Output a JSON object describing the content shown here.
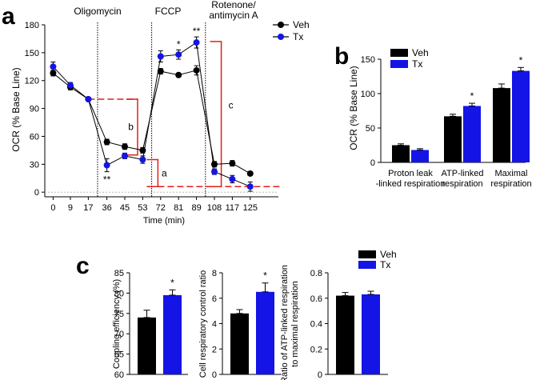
{
  "colors": {
    "veh": "#000000",
    "tx": "#1414e6",
    "bracket": "#e0201b",
    "dash": "#e0201b"
  },
  "panel_labels": {
    "a": "a",
    "b": "b",
    "c": "c"
  },
  "chart_data": [
    {
      "id": "a",
      "type": "line",
      "ylabel": "OCR (% Base Line)",
      "xlabel": "Time (min)",
      "x": [
        "0",
        "9",
        "17",
        "36",
        "45",
        "53",
        "72",
        "81",
        "89",
        "108",
        "117",
        "125"
      ],
      "ylim": [
        -5,
        180
      ],
      "yticks": [
        0,
        30,
        60,
        90,
        120,
        150,
        180
      ],
      "legend": [
        "Veh",
        "Tx"
      ],
      "phases": [
        "Oligomycin",
        "FCCP",
        "Rotenone/",
        "antimycin A"
      ],
      "series": [
        {
          "name": "Veh",
          "values": [
            128,
            113,
            100,
            54,
            49,
            45,
            130,
            126,
            131,
            30,
            31,
            20
          ],
          "err": [
            3,
            3,
            1,
            3,
            3,
            3,
            3,
            2,
            5,
            3,
            3,
            2
          ]
        },
        {
          "name": "Tx",
          "values": [
            135,
            115,
            100,
            29,
            39,
            35,
            146,
            148,
            161,
            22,
            14,
            6
          ],
          "err": [
            5,
            3,
            1,
            7,
            3,
            4,
            6,
            5,
            6,
            3,
            4,
            5
          ]
        }
      ],
      "significance": [
        {
          "x": "36",
          "label": "**"
        },
        {
          "x": "81",
          "label": "*"
        },
        {
          "x": "89",
          "label": "**"
        }
      ],
      "brackets": {
        "a": "a",
        "b": "b",
        "c": "c"
      }
    },
    {
      "id": "b",
      "type": "bar",
      "ylabel": "OCR (% Base Line)",
      "categories": [
        "Proton leak",
        "ATP-linked",
        "Maximal"
      ],
      "categories_line2": [
        "-linked respiration",
        "respiration",
        "respiration"
      ],
      "ylim": [
        0,
        150
      ],
      "yticks": [
        0,
        50,
        100,
        150
      ],
      "legend": [
        "Veh",
        "Tx"
      ],
      "series": [
        {
          "name": "Veh",
          "values": [
            25,
            67,
            108
          ],
          "err": [
            2,
            3,
            6
          ]
        },
        {
          "name": "Tx",
          "values": [
            18,
            82,
            133
          ],
          "err": [
            2,
            4,
            5
          ]
        }
      ],
      "significance": [
        "",
        "*",
        "*"
      ]
    },
    {
      "id": "c1",
      "type": "bar",
      "ylabel": "Coupling efficiency (%)",
      "ylim": [
        60,
        85
      ],
      "yticks": [
        60,
        65,
        70,
        75,
        80,
        85
      ],
      "series": [
        {
          "name": "Veh",
          "values": [
            74
          ],
          "err": [
            1.8
          ]
        },
        {
          "name": "Tx",
          "values": [
            79.5
          ],
          "err": [
            1.3
          ]
        }
      ],
      "significance": "*"
    },
    {
      "id": "c2",
      "type": "bar",
      "ylabel": "Cell respiratory control ratio",
      "ylim": [
        0,
        8
      ],
      "yticks": [
        0,
        2,
        4,
        6,
        8
      ],
      "series": [
        {
          "name": "Veh",
          "values": [
            4.8
          ],
          "err": [
            0.3
          ]
        },
        {
          "name": "Tx",
          "values": [
            6.5
          ],
          "err": [
            0.7
          ]
        }
      ],
      "significance": "*"
    },
    {
      "id": "c3",
      "type": "bar",
      "ylabel": "Ratio of ATP-linked respiration",
      "ylabel2": "to maximal respiration",
      "ylim": [
        0,
        0.8
      ],
      "yticks": [
        "0",
        "0.2",
        "0.4",
        "0.6",
        "0.8"
      ],
      "legend": [
        "Veh",
        "Tx"
      ],
      "series": [
        {
          "name": "Veh",
          "values": [
            0.62
          ],
          "err": [
            0.025
          ]
        },
        {
          "name": "Tx",
          "values": [
            0.63
          ],
          "err": [
            0.025
          ]
        }
      ],
      "significance": ""
    }
  ]
}
